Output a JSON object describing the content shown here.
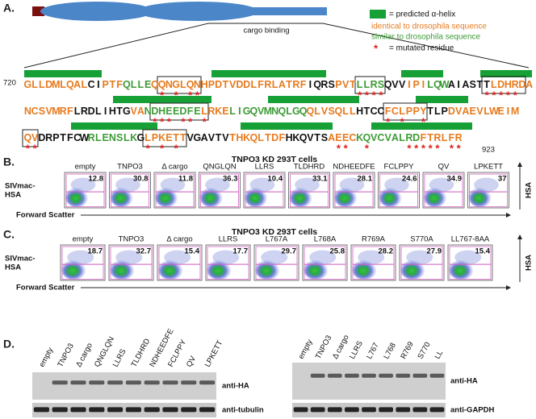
{
  "panel_a": {
    "label": "A.",
    "cargo_label": "cargo binding",
    "legend": {
      "helix": "= predicted α-helix",
      "identical": "identical to drosophila sequence",
      "similar": "similar to drosophila sequence",
      "star": "*",
      "mutated": "= mutated residue"
    },
    "start": 720,
    "end": 923,
    "lines": [
      {
        "segments": [
          {
            "text": "GLLDMLQAL",
            "color": "#e77b1f"
          },
          {
            "text": "CI",
            "color": "#111111"
          },
          {
            "text": "PTF",
            "color": "#e77b1f"
          },
          {
            "text": "QLLE",
            "color": "#3e9b37"
          },
          {
            "text": "QQNGLQN",
            "color": "#e77b1f"
          },
          {
            "text": "HPDTVDDLFRLATRF",
            "color": "#e77b1f"
          },
          {
            "text": "IQRS",
            "color": "#111111"
          },
          {
            "text": "PVT",
            "color": "#e77b1f"
          },
          {
            "text": "LLRS",
            "color": "#3e9b37"
          },
          {
            "text": "QVV",
            "color": "#111111"
          },
          {
            "text": "IPI",
            "color": "#e77b1f"
          },
          {
            "text": "LQW",
            "color": "#3e9b37"
          },
          {
            "text": "AIASTT",
            "color": "#111111"
          },
          {
            "text": "LDHRDA",
            "color": "#e77b1f"
          }
        ],
        "asterisks": "                   * * **                      ****              *****"
      },
      {
        "segments": [
          {
            "text": "NCSVMRF",
            "color": "#e77b1f"
          },
          {
            "text": "LRDLIHTG",
            "color": "#111111"
          },
          {
            "text": "VA",
            "color": "#e77b1f"
          },
          {
            "text": "NDHEEDFE",
            "color": "#3e9b37"
          },
          {
            "text": "LRKE",
            "color": "#e77b1f"
          },
          {
            "text": "LIGQVMNQLGQ",
            "color": "#3e9b37"
          },
          {
            "text": "QLVSQLL",
            "color": "#e77b1f"
          },
          {
            "text": "HTCC",
            "color": "#111111"
          },
          {
            "text": "FCLPPY",
            "color": "#e77b1f"
          },
          {
            "text": "TLP",
            "color": "#111111"
          },
          {
            "text": "DVAEVLWEIM",
            "color": "#e77b1f"
          }
        ],
        "asterisks": "                  *** ** *                         * *  *"
      },
      {
        "segments": [
          {
            "text": "QV",
            "color": "#e77b1f"
          },
          {
            "text": "DRPTFCW",
            "color": "#111111"
          },
          {
            "text": "RLENSLK",
            "color": "#3e9b37"
          },
          {
            "text": "G",
            "color": "#111111"
          },
          {
            "text": "LPKETT",
            "color": "#e77b1f"
          },
          {
            "text": "VGAVTV",
            "color": "#111111"
          },
          {
            "text": "THKQLTDF",
            "color": "#e77b1f"
          },
          {
            "text": "HKQVTS",
            "color": "#111111"
          },
          {
            "text": "AEEC",
            "color": "#e77b1f"
          },
          {
            "text": "KQVCVALRD",
            "color": "#3e9b37"
          },
          {
            "text": "FTRLFR",
            "color": "#e77b1f"
          }
        ],
        "asterisks": "**               * * *                      **  *     ***** **"
      }
    ]
  },
  "panel_b": {
    "label": "B.",
    "title": "TNPO3 KD 293T cells",
    "y_label": [
      "SIVmac-",
      "HSA"
    ],
    "x_label": "Forward Scatter",
    "axis_label": "HSA",
    "plots": [
      {
        "name": "empty",
        "percent": 12.8
      },
      {
        "name": "TNPO3",
        "percent": 30.8
      },
      {
        "name": "Δ cargo",
        "percent": 11.8
      },
      {
        "name": "QNGLQN",
        "percent": 36.3
      },
      {
        "name": "LLRS",
        "percent": 10.4
      },
      {
        "name": "TLDHRD",
        "percent": 33.1
      },
      {
        "name": "NDHEEDFE",
        "percent": 28.1
      },
      {
        "name": "FCLPPY",
        "percent": 24.6
      },
      {
        "name": "QV",
        "percent": 34.9
      },
      {
        "name": "LPKETT",
        "percent": 37
      }
    ]
  },
  "panel_c": {
    "label": "C.",
    "title": "TNPO3 KD 293T cells",
    "y_label": [
      "SIVmac-",
      "HSA"
    ],
    "x_label": "Forward Scatter",
    "axis_label": "HSA",
    "plots": [
      {
        "name": "empty",
        "percent": 18.7
      },
      {
        "name": "TNPO3",
        "percent": 32.7
      },
      {
        "name": "Δ cargo",
        "percent": 15.4
      },
      {
        "name": "LLRS",
        "percent": 17.7
      },
      {
        "name": "L767A",
        "percent": 29.7
      },
      {
        "name": "L768A",
        "percent": 25.8
      },
      {
        "name": "R769A",
        "percent": 28.2
      },
      {
        "name": "S770A",
        "percent": 27.9
      },
      {
        "name": "LL767-8AA",
        "percent": 15.4
      }
    ]
  },
  "panel_d": {
    "label": "D.",
    "left": {
      "lanes": [
        "empty",
        "TNPO3",
        "Δ cargo",
        "QNGLQN",
        "LLRS",
        "TLDHRD",
        "NDHEEDFE",
        "FCLPPY",
        "QV",
        "LPKETT"
      ],
      "top": "anti-HA",
      "bottom": "anti-tubulin"
    },
    "right": {
      "lanes": [
        "empty",
        "TNPO3",
        "Δ cargo",
        "LLRS",
        "L767",
        "L768",
        "R769",
        "S770",
        "LL"
      ],
      "top": "anti-HA",
      "bottom": "anti-GAPDH"
    }
  }
}
